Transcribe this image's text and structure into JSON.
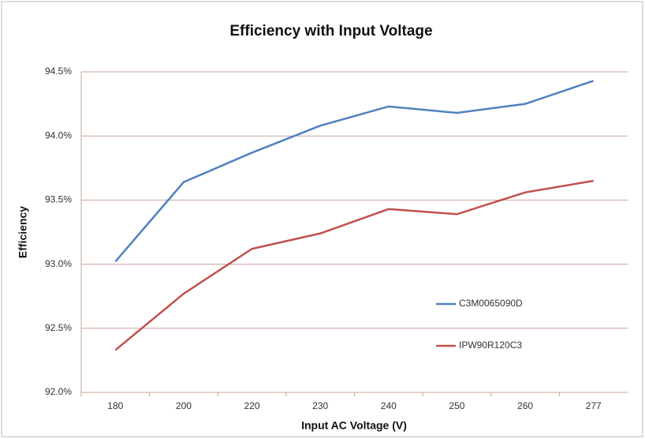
{
  "chart_data": {
    "type": "line",
    "title": "Efficiency with Input Voltage",
    "x_label": "Input AC Voltage (V)",
    "y_label": "Efficiency",
    "categories": [
      "180",
      "200",
      "220",
      "230",
      "240",
      "250",
      "260",
      "277"
    ],
    "series": [
      {
        "name": "C3M0065090D",
        "color": "#4f81bd",
        "values": [
          93.02,
          93.64,
          93.87,
          94.08,
          94.23,
          94.18,
          94.25,
          94.43
        ]
      },
      {
        "name": "IPW90R120C3",
        "color": "#c0504d",
        "values": [
          92.33,
          92.77,
          93.12,
          93.24,
          93.43,
          93.39,
          93.56,
          93.65
        ]
      }
    ],
    "ylim": [
      92.0,
      94.5
    ],
    "yticks": [
      {
        "value": 92.0,
        "label": "92.0%"
      },
      {
        "value": 92.5,
        "label": "92.5%"
      },
      {
        "value": 93.0,
        "label": "93.0%"
      },
      {
        "value": 93.5,
        "label": "93.5%"
      },
      {
        "value": 94.0,
        "label": "94.0%"
      },
      {
        "value": 94.5,
        "label": "94.5%"
      }
    ],
    "grid": true,
    "legend": "lower right"
  }
}
